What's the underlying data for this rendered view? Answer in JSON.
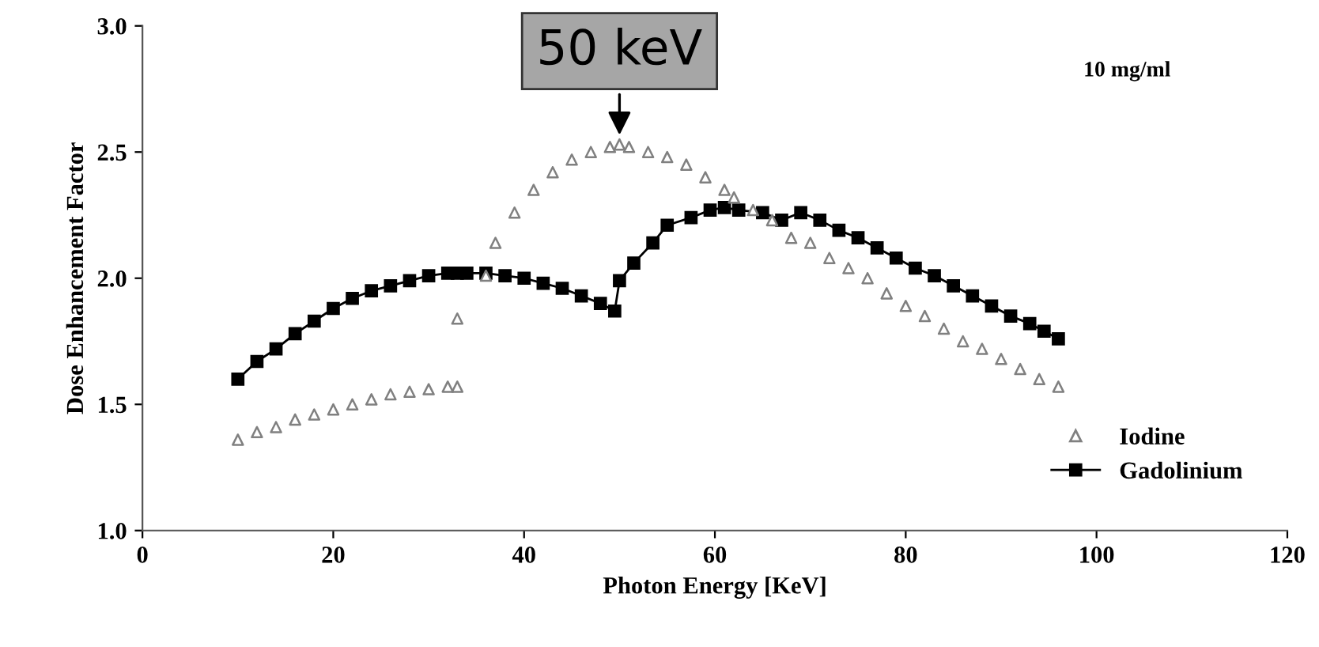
{
  "chart_data": {
    "type": "scatter",
    "xlabel": "Photon Energy [KeV]",
    "ylabel": "Dose Enhancement Factor",
    "xlim": [
      0,
      120
    ],
    "xticks": [
      0,
      20,
      40,
      60,
      80,
      100,
      120
    ],
    "ylim": [
      1.0,
      3.0
    ],
    "yticks": [
      {
        "value": 1.0,
        "label": "1.0"
      },
      {
        "value": 1.5,
        "label": "1.5"
      },
      {
        "value": 2.0,
        "label": "2.0"
      },
      {
        "value": 2.5,
        "label": "2.5"
      },
      {
        "value": 3.0,
        "label": "3.0"
      }
    ],
    "grid": false,
    "legend": "bottom right",
    "annotations": [
      {
        "text": "50 keV",
        "x": 50,
        "y": 2.55
      },
      "10 mg/ml"
    ],
    "series": [
      {
        "name": "Iodine",
        "marker": "triangle",
        "color": "#808080",
        "x": [
          10,
          12,
          14,
          16,
          18,
          20,
          22,
          24,
          26,
          28,
          30,
          32,
          33,
          33,
          36,
          37,
          39,
          41,
          43,
          45,
          47,
          49,
          50,
          51,
          53,
          55,
          57,
          59,
          61,
          62,
          64,
          66,
          68,
          70,
          72,
          74,
          76,
          78,
          80,
          82,
          84,
          86,
          88,
          90,
          92,
          94,
          96
        ],
        "values": [
          1.36,
          1.39,
          1.41,
          1.44,
          1.46,
          1.48,
          1.5,
          1.52,
          1.54,
          1.55,
          1.56,
          1.57,
          1.57,
          1.84,
          2.01,
          2.14,
          2.26,
          2.35,
          2.42,
          2.47,
          2.5,
          2.52,
          2.53,
          2.52,
          2.5,
          2.48,
          2.45,
          2.4,
          2.35,
          2.32,
          2.27,
          2.23,
          2.16,
          2.14,
          2.08,
          2.04,
          2.0,
          1.94,
          1.89,
          1.85,
          1.8,
          1.75,
          1.72,
          1.68,
          1.64,
          1.6,
          1.57
        ]
      },
      {
        "name": "Gadolinium",
        "type": "line",
        "marker": "square",
        "color": "#000000",
        "x": [
          10,
          12,
          14,
          16,
          18,
          20,
          22,
          24,
          26,
          28,
          30,
          32,
          33,
          34,
          36,
          38,
          40,
          42,
          44,
          46,
          48,
          49.5,
          50,
          51.5,
          53.5,
          55,
          57.5,
          59.5,
          61,
          62.5,
          65,
          67,
          69,
          71,
          73,
          75,
          77,
          79,
          81,
          83,
          85,
          87,
          89,
          91,
          93,
          94.5,
          96
        ],
        "values": [
          1.6,
          1.67,
          1.72,
          1.78,
          1.83,
          1.88,
          1.92,
          1.95,
          1.97,
          1.99,
          2.01,
          2.02,
          2.02,
          2.02,
          2.02,
          2.01,
          2.0,
          1.98,
          1.96,
          1.93,
          1.9,
          1.87,
          1.99,
          2.06,
          2.14,
          2.21,
          2.24,
          2.27,
          2.28,
          2.27,
          2.26,
          2.23,
          2.26,
          2.23,
          2.19,
          2.16,
          2.12,
          2.08,
          2.04,
          2.01,
          1.97,
          1.93,
          1.89,
          1.85,
          1.82,
          1.79,
          1.76
        ]
      }
    ]
  }
}
